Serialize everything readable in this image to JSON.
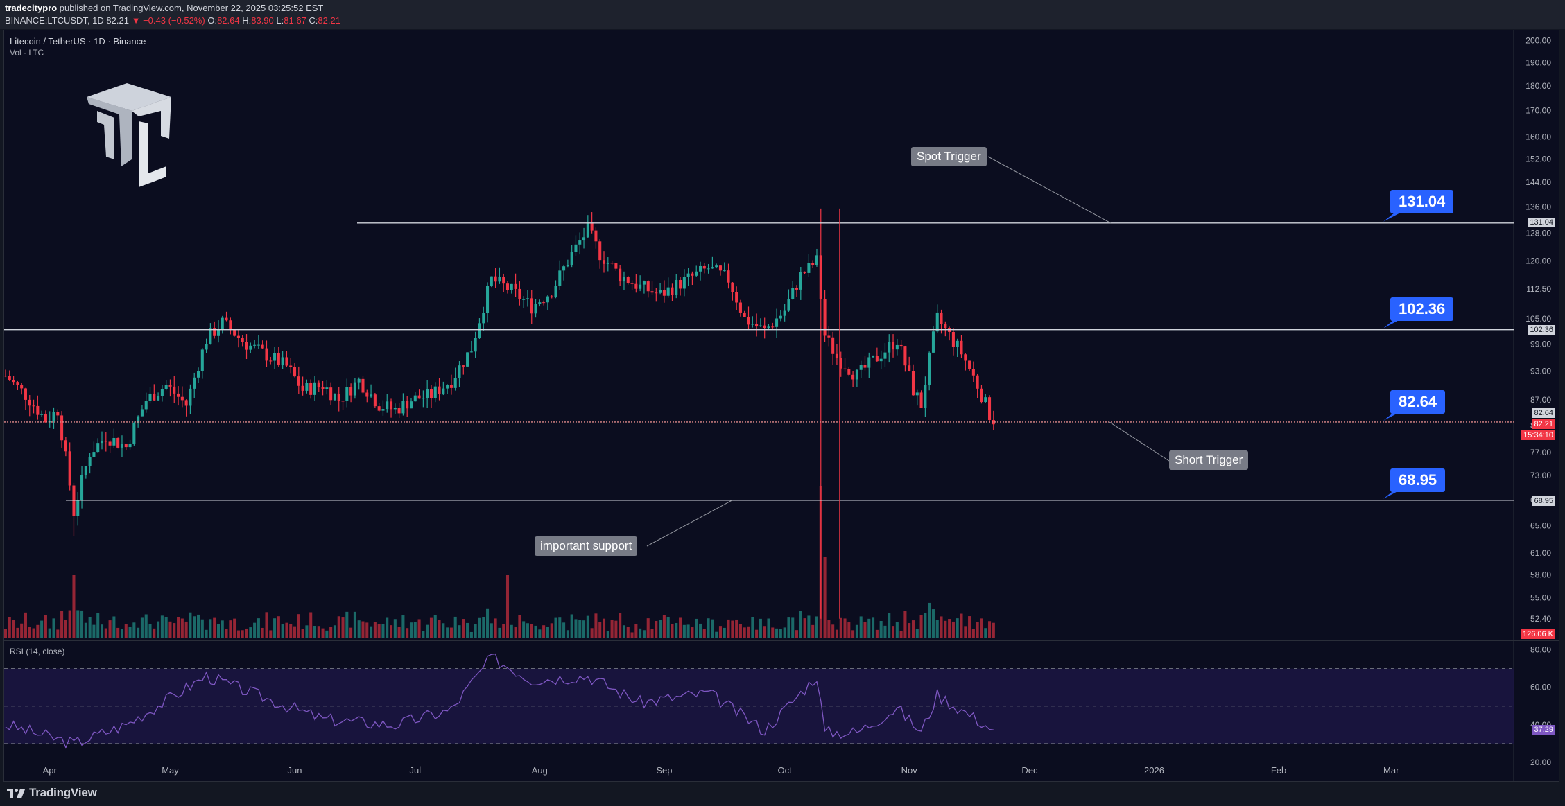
{
  "publish": {
    "author": "tradecitypro",
    "text": " published on TradingView.com, November 22, 2025 03:25:52 EST",
    "ticker": "BINANCE:LTCUSDT, 1D",
    "last": "82.21",
    "change": "▼ −0.43 (−0.52%)",
    "o_label": "O:",
    "o": "82.64",
    "h_label": "H:",
    "h": "83.90",
    "l_label": "L:",
    "l": "81.67",
    "c_label": "C:",
    "c": "82.21"
  },
  "legend": {
    "symbol": "Litecoin / TetherUS · 1D · Binance",
    "volume": "Vol · LTC",
    "rsi": "RSI (14, close)"
  },
  "brand": {
    "tv": "TradingView"
  },
  "colors": {
    "background": "#0b0d1f",
    "up": "#26a69a",
    "down": "#f23645",
    "level_box": "#2962ff",
    "note_box": "#787b86",
    "rsi_line": "#7e57c2"
  },
  "annotations": {
    "spot_trigger": "Spot Trigger",
    "short_trigger": "Short Trigger",
    "important_support": "important support"
  },
  "levels": [
    {
      "value": 131.04,
      "label": "131.04",
      "axis": "131.04"
    },
    {
      "value": 102.36,
      "label": "102.36",
      "axis": "102.36"
    },
    {
      "value": 82.64,
      "label": "82.64",
      "axis": "82.64"
    },
    {
      "value": 68.95,
      "label": "68.95",
      "axis": "68.95"
    }
  ],
  "axis": {
    "current_price": "82.21",
    "countdown": "15:34:10",
    "volume": "126.06 K",
    "rsi_value": "37.29"
  },
  "chart_data": {
    "type": "candlestick",
    "scale": "log",
    "ylim": [
      50,
      205
    ],
    "price_ticks": [
      "200.00",
      "190.00",
      "180.00",
      "170.00",
      "160.00",
      "152.00",
      "144.00",
      "136.00",
      "128.00",
      "120.00",
      "112.50",
      "105.00",
      "99.00",
      "93.00",
      "87.00",
      "82.00",
      "77.00",
      "73.00",
      "69.00",
      "65.00",
      "61.00",
      "58.00",
      "55.00",
      "52.40"
    ],
    "time_ticks": [
      "Apr",
      "May",
      "Jun",
      "Jul",
      "Aug",
      "Sep",
      "Oct",
      "Nov",
      "Dec",
      "2026",
      "Feb",
      "Mar"
    ],
    "rsi_ticks": [
      "80.00",
      "60.00",
      "40.00",
      "20.00"
    ],
    "rsi_bands": [
      70,
      50,
      30
    ],
    "price_path": [
      [
        "2025-03-21",
        92
      ],
      [
        "2025-03-26",
        88
      ],
      [
        "2025-03-31",
        83
      ],
      [
        "2025-04-03",
        85
      ],
      [
        "2025-04-05",
        76
      ],
      [
        "2025-04-07",
        67
      ],
      [
        "2025-04-11",
        77
      ],
      [
        "2025-04-15",
        80
      ],
      [
        "2025-04-20",
        78
      ],
      [
        "2025-04-25",
        87
      ],
      [
        "2025-04-30",
        90
      ],
      [
        "2025-05-05",
        86
      ],
      [
        "2025-05-10",
        100
      ],
      [
        "2025-05-14",
        104
      ],
      [
        "2025-05-20",
        99
      ],
      [
        "2025-05-26",
        96
      ],
      [
        "2025-05-30",
        94
      ],
      [
        "2025-06-03",
        89
      ],
      [
        "2025-06-08",
        90
      ],
      [
        "2025-06-12",
        87
      ],
      [
        "2025-06-17",
        91
      ],
      [
        "2025-06-22",
        86
      ],
      [
        "2025-06-26",
        85
      ],
      [
        "2025-06-30",
        87
      ],
      [
        "2025-07-05",
        88
      ],
      [
        "2025-07-10",
        91
      ],
      [
        "2025-07-15",
        98
      ],
      [
        "2025-07-20",
        115
      ],
      [
        "2025-07-25",
        112
      ],
      [
        "2025-07-30",
        108
      ],
      [
        "2025-08-04",
        112
      ],
      [
        "2025-08-09",
        122
      ],
      [
        "2025-08-13",
        129
      ],
      [
        "2025-08-16",
        122
      ],
      [
        "2025-08-21",
        116
      ],
      [
        "2025-08-26",
        113
      ],
      [
        "2025-08-31",
        111
      ],
      [
        "2025-09-05",
        114
      ],
      [
        "2025-09-12",
        118
      ],
      [
        "2025-09-17",
        115
      ],
      [
        "2025-09-21",
        105
      ],
      [
        "2025-09-26",
        102
      ],
      [
        "2025-10-01",
        107
      ],
      [
        "2025-10-05",
        116
      ],
      [
        "2025-10-09",
        120
      ],
      [
        "2025-10-11",
        101
      ],
      [
        "2025-10-14",
        96
      ],
      [
        "2025-10-19",
        92
      ],
      [
        "2025-10-24",
        96
      ],
      [
        "2025-10-29",
        100
      ],
      [
        "2025-11-02",
        89
      ],
      [
        "2025-11-04",
        86
      ],
      [
        "2025-11-08",
        105
      ],
      [
        "2025-11-11",
        101
      ],
      [
        "2025-11-14",
        97
      ],
      [
        "2025-11-18",
        90
      ],
      [
        "2025-11-22",
        82.21
      ]
    ],
    "extremes": [
      {
        "date": "2025-04-07",
        "low": 63.5
      },
      {
        "date": "2025-08-13",
        "high": 133.5
      },
      {
        "date": "2025-10-10",
        "high": 135.5,
        "low": 52.4
      }
    ],
    "rsi_path": [
      [
        "2025-03-21",
        40
      ],
      [
        "2025-04-07",
        30
      ],
      [
        "2025-04-20",
        40
      ],
      [
        "2025-05-10",
        66
      ],
      [
        "2025-05-20",
        58
      ],
      [
        "2025-06-08",
        43
      ],
      [
        "2025-06-26",
        40
      ],
      [
        "2025-07-10",
        48
      ],
      [
        "2025-07-20",
        76
      ],
      [
        "2025-07-30",
        64
      ],
      [
        "2025-08-13",
        66
      ],
      [
        "2025-08-26",
        52
      ],
      [
        "2025-09-12",
        57
      ],
      [
        "2025-09-26",
        37
      ],
      [
        "2025-10-09",
        66
      ],
      [
        "2025-10-11",
        36
      ],
      [
        "2025-10-19",
        36
      ],
      [
        "2025-10-29",
        49
      ],
      [
        "2025-11-04",
        36
      ],
      [
        "2025-11-08",
        56
      ],
      [
        "2025-11-22",
        37.29
      ]
    ]
  }
}
